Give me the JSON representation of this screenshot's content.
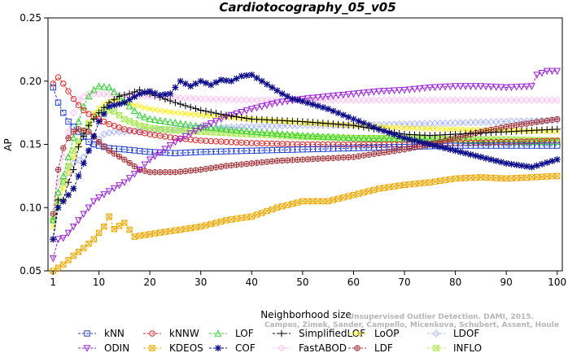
{
  "chart_data": {
    "type": "line",
    "title": "Cardiotocography_05_v05",
    "xlabel": "Neighborhood size",
    "ylabel": "AP",
    "xlim": [
      0,
      101
    ],
    "ylim": [
      0.05,
      0.25
    ],
    "xticks": [
      1,
      10,
      20,
      30,
      40,
      50,
      60,
      70,
      80,
      90,
      100
    ],
    "yticks": [
      0.05,
      0.1,
      0.15,
      0.2,
      0.25
    ],
    "grid": false,
    "legend_position": "bottom",
    "series": [
      {
        "name": "kNN",
        "color": "#1f3fd0",
        "marker": "square",
        "points": [
          [
            1,
            0.195
          ],
          [
            2,
            0.183
          ],
          [
            3,
            0.175
          ],
          [
            4,
            0.168
          ],
          [
            5,
            0.164
          ],
          [
            6,
            0.16
          ],
          [
            7,
            0.156
          ],
          [
            8,
            0.152
          ],
          [
            9,
            0.15
          ],
          [
            10,
            0.149
          ],
          [
            12,
            0.147
          ],
          [
            15,
            0.146
          ],
          [
            20,
            0.144
          ],
          [
            25,
            0.143
          ],
          [
            30,
            0.144
          ],
          [
            40,
            0.145
          ],
          [
            50,
            0.146
          ],
          [
            60,
            0.147
          ],
          [
            70,
            0.148
          ],
          [
            80,
            0.149
          ],
          [
            90,
            0.149
          ],
          [
            100,
            0.149
          ]
        ]
      },
      {
        "name": "kNNW",
        "color": "#e02020",
        "marker": "circle",
        "points": [
          [
            1,
            0.198
          ],
          [
            2,
            0.203
          ],
          [
            3,
            0.198
          ],
          [
            4,
            0.192
          ],
          [
            5,
            0.186
          ],
          [
            6,
            0.181
          ],
          [
            7,
            0.177
          ],
          [
            8,
            0.174
          ],
          [
            10,
            0.17
          ],
          [
            12,
            0.166
          ],
          [
            15,
            0.162
          ],
          [
            20,
            0.158
          ],
          [
            25,
            0.155
          ],
          [
            30,
            0.153
          ],
          [
            40,
            0.151
          ],
          [
            50,
            0.15
          ],
          [
            60,
            0.15
          ],
          [
            70,
            0.15
          ],
          [
            80,
            0.151
          ],
          [
            90,
            0.152
          ],
          [
            100,
            0.153
          ]
        ]
      },
      {
        "name": "LOF",
        "color": "#30d030",
        "marker": "triangle-up",
        "points": [
          [
            1,
            0.09
          ],
          [
            2,
            0.112
          ],
          [
            3,
            0.125
          ],
          [
            4,
            0.14
          ],
          [
            5,
            0.155
          ],
          [
            6,
            0.168
          ],
          [
            7,
            0.18
          ],
          [
            8,
            0.188
          ],
          [
            9,
            0.193
          ],
          [
            10,
            0.196
          ],
          [
            12,
            0.195
          ],
          [
            14,
            0.188
          ],
          [
            16,
            0.18
          ],
          [
            18,
            0.173
          ],
          [
            20,
            0.17
          ],
          [
            25,
            0.167
          ],
          [
            30,
            0.164
          ],
          [
            40,
            0.16
          ],
          [
            50,
            0.157
          ],
          [
            60,
            0.155
          ],
          [
            70,
            0.154
          ],
          [
            80,
            0.153
          ],
          [
            90,
            0.152
          ],
          [
            100,
            0.152
          ]
        ]
      },
      {
        "name": "SimplifiedLOF",
        "color": "#000000",
        "marker": "plus",
        "points": [
          [
            1,
            0.075
          ],
          [
            2,
            0.106
          ],
          [
            3,
            0.106
          ],
          [
            4,
            0.12
          ],
          [
            5,
            0.13
          ],
          [
            6,
            0.148
          ],
          [
            8,
            0.165
          ],
          [
            10,
            0.175
          ],
          [
            12,
            0.183
          ],
          [
            14,
            0.188
          ],
          [
            16,
            0.19
          ],
          [
            18,
            0.193
          ],
          [
            20,
            0.19
          ],
          [
            25,
            0.183
          ],
          [
            30,
            0.177
          ],
          [
            35,
            0.173
          ],
          [
            40,
            0.17
          ],
          [
            50,
            0.168
          ],
          [
            60,
            0.165
          ],
          [
            70,
            0.158
          ],
          [
            75,
            0.157
          ],
          [
            80,
            0.158
          ],
          [
            90,
            0.16
          ],
          [
            100,
            0.162
          ]
        ]
      },
      {
        "name": "LoOP",
        "color": "#ffee00",
        "marker": "cross",
        "points": [
          [
            1,
            0.085
          ],
          [
            3,
            0.115
          ],
          [
            5,
            0.14
          ],
          [
            7,
            0.16
          ],
          [
            9,
            0.175
          ],
          [
            11,
            0.182
          ],
          [
            13,
            0.185
          ],
          [
            15,
            0.183
          ],
          [
            18,
            0.18
          ],
          [
            20,
            0.178
          ],
          [
            25,
            0.175
          ],
          [
            30,
            0.173
          ],
          [
            40,
            0.17
          ],
          [
            50,
            0.167
          ],
          [
            60,
            0.165
          ],
          [
            70,
            0.163
          ],
          [
            80,
            0.162
          ],
          [
            90,
            0.161
          ],
          [
            100,
            0.16
          ]
        ]
      },
      {
        "name": "LDOF",
        "color": "#a8b4ff",
        "marker": "diamond",
        "points": [
          [
            1,
            0.09
          ],
          [
            3,
            0.12
          ],
          [
            5,
            0.135
          ],
          [
            7,
            0.14
          ],
          [
            9,
            0.15
          ],
          [
            11,
            0.158
          ],
          [
            13,
            0.16
          ],
          [
            15,
            0.16
          ],
          [
            20,
            0.161
          ],
          [
            25,
            0.162
          ],
          [
            30,
            0.163
          ],
          [
            40,
            0.164
          ],
          [
            50,
            0.165
          ],
          [
            60,
            0.165
          ],
          [
            70,
            0.166
          ],
          [
            80,
            0.167
          ],
          [
            90,
            0.168
          ],
          [
            100,
            0.169
          ]
        ]
      },
      {
        "name": "ODIN",
        "color": "#9a1fd8",
        "marker": "triangle-down",
        "points": [
          [
            1,
            0.06
          ],
          [
            2,
            0.075
          ],
          [
            3,
            0.076
          ],
          [
            4,
            0.08
          ],
          [
            5,
            0.085
          ],
          [
            6,
            0.09
          ],
          [
            7,
            0.095
          ],
          [
            8,
            0.1
          ],
          [
            9,
            0.105
          ],
          [
            10,
            0.108
          ],
          [
            12,
            0.113
          ],
          [
            15,
            0.12
          ],
          [
            18,
            0.13
          ],
          [
            20,
            0.138
          ],
          [
            25,
            0.152
          ],
          [
            30,
            0.163
          ],
          [
            35,
            0.172
          ],
          [
            40,
            0.178
          ],
          [
            45,
            0.183
          ],
          [
            50,
            0.186
          ],
          [
            55,
            0.188
          ],
          [
            60,
            0.19
          ],
          [
            65,
            0.192
          ],
          [
            70,
            0.193
          ],
          [
            75,
            0.195
          ],
          [
            80,
            0.196
          ],
          [
            85,
            0.196
          ],
          [
            90,
            0.195
          ],
          [
            95,
            0.196
          ],
          [
            96,
            0.205
          ],
          [
            98,
            0.208
          ],
          [
            100,
            0.208
          ]
        ]
      },
      {
        "name": "KDEOS",
        "color": "#f0a800",
        "marker": "square-x",
        "points": [
          [
            1,
            0.05
          ],
          [
            3,
            0.055
          ],
          [
            5,
            0.062
          ],
          [
            7,
            0.068
          ],
          [
            9,
            0.075
          ],
          [
            11,
            0.085
          ],
          [
            12,
            0.093
          ],
          [
            13,
            0.083
          ],
          [
            15,
            0.088
          ],
          [
            17,
            0.077
          ],
          [
            20,
            0.079
          ],
          [
            25,
            0.082
          ],
          [
            30,
            0.085
          ],
          [
            35,
            0.09
          ],
          [
            40,
            0.093
          ],
          [
            45,
            0.1
          ],
          [
            50,
            0.105
          ],
          [
            55,
            0.105
          ],
          [
            60,
            0.11
          ],
          [
            65,
            0.115
          ],
          [
            70,
            0.118
          ],
          [
            75,
            0.12
          ],
          [
            80,
            0.123
          ],
          [
            85,
            0.124
          ],
          [
            90,
            0.123
          ],
          [
            95,
            0.124
          ],
          [
            100,
            0.125
          ]
        ]
      },
      {
        "name": "COF",
        "color": "#0a0a8a",
        "marker": "asterisk",
        "points": [
          [
            1,
            0.075
          ],
          [
            2,
            0.1
          ],
          [
            3,
            0.105
          ],
          [
            4,
            0.11
          ],
          [
            5,
            0.115
          ],
          [
            6,
            0.125
          ],
          [
            8,
            0.145
          ],
          [
            10,
            0.168
          ],
          [
            12,
            0.18
          ],
          [
            15,
            0.183
          ],
          [
            18,
            0.19
          ],
          [
            20,
            0.192
          ],
          [
            22,
            0.189
          ],
          [
            24,
            0.19
          ],
          [
            26,
            0.2
          ],
          [
            28,
            0.196
          ],
          [
            30,
            0.2
          ],
          [
            32,
            0.197
          ],
          [
            34,
            0.201
          ],
          [
            36,
            0.2
          ],
          [
            38,
            0.204
          ],
          [
            40,
            0.205
          ],
          [
            42,
            0.2
          ],
          [
            44,
            0.195
          ],
          [
            46,
            0.19
          ],
          [
            48,
            0.186
          ],
          [
            50,
            0.184
          ],
          [
            55,
            0.178
          ],
          [
            60,
            0.17
          ],
          [
            65,
            0.162
          ],
          [
            70,
            0.155
          ],
          [
            75,
            0.15
          ],
          [
            80,
            0.145
          ],
          [
            85,
            0.14
          ],
          [
            90,
            0.135
          ],
          [
            95,
            0.132
          ],
          [
            100,
            0.138
          ]
        ]
      },
      {
        "name": "FastABOD",
        "color": "#ffbcf2",
        "marker": "diamond",
        "points": [
          [
            1,
            0.09
          ],
          [
            2,
            0.12
          ],
          [
            3,
            0.14
          ],
          [
            4,
            0.16
          ],
          [
            5,
            0.175
          ],
          [
            6,
            0.185
          ],
          [
            8,
            0.19
          ],
          [
            10,
            0.19
          ],
          [
            15,
            0.189
          ],
          [
            20,
            0.188
          ],
          [
            30,
            0.186
          ],
          [
            40,
            0.185
          ],
          [
            50,
            0.185
          ],
          [
            60,
            0.185
          ],
          [
            70,
            0.185
          ],
          [
            80,
            0.185
          ],
          [
            90,
            0.185
          ],
          [
            100,
            0.185
          ]
        ]
      },
      {
        "name": "LDF",
        "color": "#a83238",
        "marker": "circle-plus",
        "points": [
          [
            1,
            0.095
          ],
          [
            2,
            0.13
          ],
          [
            3,
            0.147
          ],
          [
            4,
            0.155
          ],
          [
            5,
            0.16
          ],
          [
            6,
            0.162
          ],
          [
            8,
            0.16
          ],
          [
            10,
            0.152
          ],
          [
            12,
            0.145
          ],
          [
            15,
            0.138
          ],
          [
            18,
            0.13
          ],
          [
            20,
            0.128
          ],
          [
            25,
            0.128
          ],
          [
            30,
            0.13
          ],
          [
            35,
            0.133
          ],
          [
            40,
            0.135
          ],
          [
            45,
            0.137
          ],
          [
            50,
            0.138
          ],
          [
            55,
            0.139
          ],
          [
            60,
            0.14
          ],
          [
            65,
            0.143
          ],
          [
            70,
            0.146
          ],
          [
            75,
            0.15
          ],
          [
            80,
            0.155
          ],
          [
            85,
            0.16
          ],
          [
            90,
            0.164
          ],
          [
            95,
            0.167
          ],
          [
            100,
            0.17
          ]
        ]
      },
      {
        "name": "INFLO",
        "color": "#a6e84a",
        "marker": "hourglass",
        "points": [
          [
            1,
            0.09
          ],
          [
            3,
            0.12
          ],
          [
            5,
            0.145
          ],
          [
            7,
            0.16
          ],
          [
            9,
            0.172
          ],
          [
            11,
            0.178
          ],
          [
            13,
            0.176
          ],
          [
            15,
            0.17
          ],
          [
            18,
            0.165
          ],
          [
            20,
            0.163
          ],
          [
            25,
            0.161
          ],
          [
            30,
            0.16
          ],
          [
            40,
            0.158
          ],
          [
            50,
            0.156
          ],
          [
            60,
            0.155
          ],
          [
            70,
            0.155
          ],
          [
            80,
            0.154
          ],
          [
            90,
            0.154
          ],
          [
            100,
            0.153
          ]
        ]
      }
    ],
    "watermark": [
      "Unsupervised Outlier Detection. DAMI, 2015.",
      "Campos, Zimek, Sander, Campello, Micenkova, Schubert, Assent, Houle"
    ]
  }
}
